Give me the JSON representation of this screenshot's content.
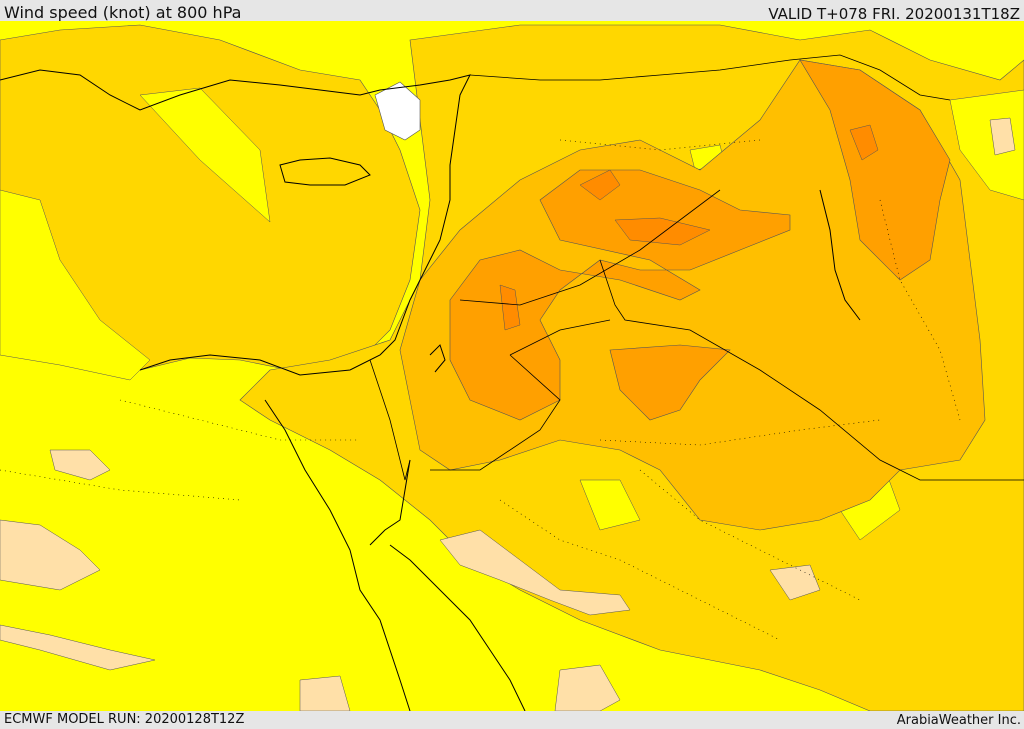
{
  "header": {
    "title": "Wind speed (knot) at 800 hPa",
    "valid": "VALID T+078 FRI. 20200131T18Z"
  },
  "footer": {
    "model_run": "ECMWF MODEL RUN: 20200128T12Z",
    "credit": "ArabiaWeather Inc."
  },
  "colors": {
    "lowest": "#ffe0a8",
    "low": "#ffff00",
    "mid": "#ffd700",
    "high": "#ffbf00",
    "higher": "#ffa000",
    "highest": "#ff8c00",
    "water_max": "#ffffff",
    "coastline": "#000000"
  }
}
